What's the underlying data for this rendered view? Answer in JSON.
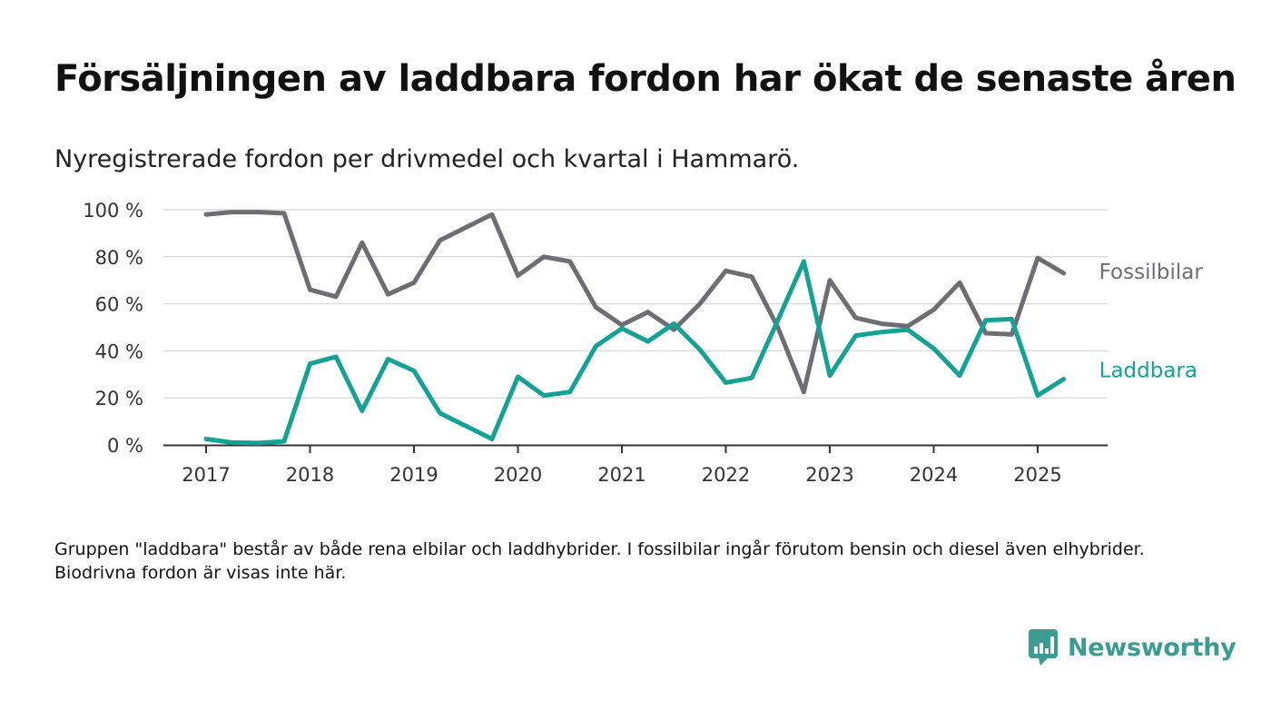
{
  "title": "Försäljningen av laddbara fordon har ökat de senaste åren",
  "subtitle": "Nyregistrerade fordon per drivmedel och kvartal i Hammarö.",
  "footnote": "Gruppen \"laddbara\" består av både rena elbilar och laddhybrider. I fossilbilar ingår förutom bensin och diesel även elhybrider. Biodrivna fordon är visas inte här.",
  "brand": {
    "name": "Newsworthy",
    "color": "#3c9c93"
  },
  "chart_data": {
    "type": "line",
    "title": "Försäljningen av laddbara fordon har ökat de senaste åren",
    "subtitle": "Nyregistrerade fordon per drivmedel och kvartal i Hammarö.",
    "xlabel": "",
    "ylabel": "",
    "xlim": [
      2016.9,
      2025.7
    ],
    "ylim": [
      0,
      100
    ],
    "x_ticks": [
      2017,
      2018,
      2019,
      2020,
      2021,
      2022,
      2023,
      2024,
      2025
    ],
    "y_ticks": [
      0,
      20,
      40,
      60,
      80,
      100
    ],
    "y_tick_labels": [
      "0 %",
      "20 %",
      "40 %",
      "60 %",
      "80 %",
      "100 %"
    ],
    "grid": "horizontal",
    "legend": "inline labels at line ends",
    "x": [
      2017.0,
      2017.25,
      2017.5,
      2017.75,
      2018.0,
      2018.25,
      2018.5,
      2018.75,
      2019.0,
      2019.25,
      2019.5,
      2019.75,
      2020.0,
      2020.25,
      2020.5,
      2020.75,
      2021.0,
      2021.25,
      2021.5,
      2021.75,
      2022.0,
      2022.25,
      2022.5,
      2022.75,
      2023.0,
      2023.25,
      2023.5,
      2023.75,
      2024.0,
      2024.25,
      2024.5,
      2024.75,
      2025.0,
      2025.25
    ],
    "series": [
      {
        "name": "Fossilbilar",
        "color": "#6e6d72",
        "values": [
          98,
          99,
          99,
          98.5,
          66,
          63,
          86,
          64,
          69,
          87,
          92.5,
          98,
          72,
          80,
          78,
          58.5,
          51,
          56.5,
          49,
          60,
          74,
          71.5,
          50,
          22.5,
          70,
          54,
          51.5,
          50.5,
          57.5,
          69,
          47.5,
          47,
          79.5,
          73
        ]
      },
      {
        "name": "Laddbara",
        "color": "#14a295",
        "values": [
          2.5,
          1,
          0.8,
          1.5,
          34.5,
          37.5,
          14.5,
          36.5,
          31.5,
          13.5,
          8,
          2.5,
          29,
          21,
          22.5,
          42,
          49.5,
          44,
          51.5,
          40.5,
          26.5,
          28.5,
          53,
          78,
          29.5,
          46.5,
          48,
          49,
          41,
          29.5,
          53,
          53.5,
          21,
          28
        ]
      }
    ]
  }
}
